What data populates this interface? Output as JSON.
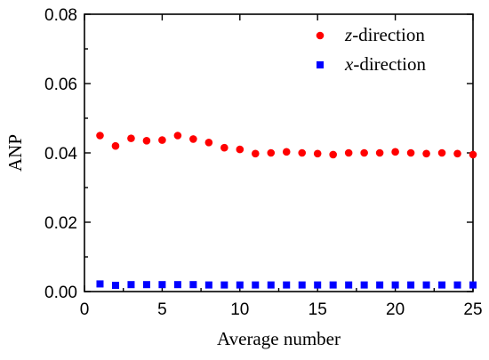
{
  "chart_data": {
    "type": "scatter",
    "xlabel": "Average number",
    "ylabel": "ANP",
    "xlim": [
      0,
      25
    ],
    "ylim": [
      0,
      0.08
    ],
    "xticks": [
      0,
      5,
      10,
      15,
      20,
      25
    ],
    "yticks": [
      0.0,
      0.02,
      0.04,
      0.06,
      0.08
    ],
    "xtick_labels": [
      "0",
      "5",
      "10",
      "15",
      "20",
      "25"
    ],
    "ytick_labels": [
      "0.00",
      "0.02",
      "0.04",
      "0.06",
      "0.08"
    ],
    "grid": false,
    "legend_position": "top-right",
    "series": [
      {
        "name": "z-direction",
        "name_italic": "z",
        "name_rest": "-direction",
        "marker": "circle",
        "color": "#ff0000",
        "x": [
          1,
          2,
          3,
          4,
          5,
          6,
          7,
          8,
          9,
          10,
          11,
          12,
          13,
          14,
          15,
          16,
          17,
          18,
          19,
          20,
          21,
          22,
          23,
          24,
          25
        ],
        "y": [
          0.045,
          0.042,
          0.0442,
          0.0435,
          0.0437,
          0.045,
          0.044,
          0.043,
          0.0415,
          0.041,
          0.0398,
          0.04,
          0.0403,
          0.04,
          0.0398,
          0.0395,
          0.04,
          0.04,
          0.04,
          0.0403,
          0.04,
          0.0398,
          0.04,
          0.0398,
          0.0395
        ]
      },
      {
        "name": "x-direction",
        "name_italic": "x",
        "name_rest": "-direction",
        "marker": "square",
        "color": "#0000ff",
        "x": [
          1,
          2,
          3,
          4,
          5,
          6,
          7,
          8,
          9,
          10,
          11,
          12,
          13,
          14,
          15,
          16,
          17,
          18,
          19,
          20,
          21,
          22,
          23,
          24,
          25
        ],
        "y": [
          0.0022,
          0.0018,
          0.002,
          0.002,
          0.002,
          0.002,
          0.002,
          0.0019,
          0.0019,
          0.0019,
          0.0019,
          0.0019,
          0.0019,
          0.0019,
          0.0019,
          0.0019,
          0.0019,
          0.0019,
          0.0019,
          0.0019,
          0.0019,
          0.0019,
          0.0019,
          0.0019,
          0.0019
        ]
      }
    ]
  }
}
